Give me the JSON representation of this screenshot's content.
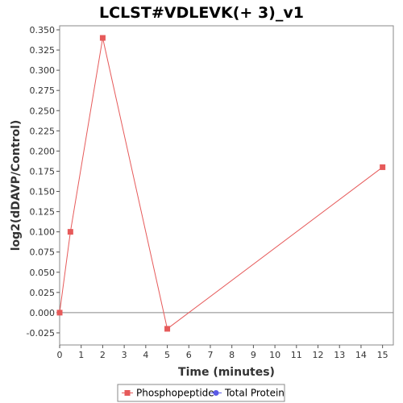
{
  "chart_data": {
    "type": "line",
    "title": "LCLST#VDLEVK(+ 3)_v1",
    "xlabel": "Time (minutes)",
    "ylabel": "log2(dDAVP/Control)",
    "xlim": [
      0,
      15.5
    ],
    "ylim": [
      -0.04,
      0.355
    ],
    "x_ticks": [
      "0",
      "1",
      "2",
      "3",
      "4",
      "5",
      "6",
      "7",
      "8",
      "9",
      "10",
      "11",
      "12",
      "13",
      "14",
      "15"
    ],
    "y_ticks": [
      "-0.025",
      "0.000",
      "0.025",
      "0.050",
      "0.075",
      "0.100",
      "0.125",
      "0.150",
      "0.175",
      "0.200",
      "0.225",
      "0.250",
      "0.275",
      "0.300",
      "0.325",
      "0.350"
    ],
    "grid": false,
    "legend_position": "bottom",
    "series": [
      {
        "name": "Phosphopeptide",
        "color": "#e65a5a",
        "marker": "square",
        "points": [
          {
            "x": 0,
            "y": 0.0
          },
          {
            "x": 0.5,
            "y": 0.1
          },
          {
            "x": 2,
            "y": 0.34
          },
          {
            "x": 5,
            "y": -0.02
          },
          {
            "x": 15,
            "y": 0.18
          }
        ]
      },
      {
        "name": "Total Protein",
        "color": "#5a5ae6",
        "marker": "circle",
        "points": []
      }
    ]
  }
}
